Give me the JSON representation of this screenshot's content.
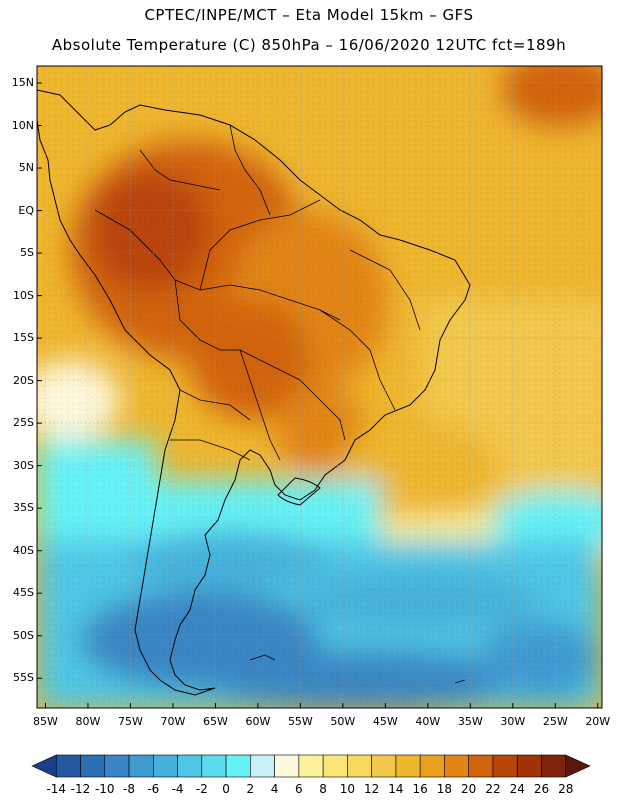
{
  "title": {
    "line1": "CPTEC/INPE/MCT –  Eta Model 15km – GFS",
    "line2": "Absolute Temperature (C) 850hPa – 16/06/2020 12UTC fct=189h"
  },
  "map": {
    "variable": "Absolute Temperature (C) 850hPa",
    "lat_ticks": [
      "15N",
      "10N",
      "5N",
      "EQ",
      "5S",
      "10S",
      "15S",
      "20S",
      "25S",
      "30S",
      "35S",
      "40S",
      "45S",
      "50S",
      "55S"
    ],
    "lon_ticks": [
      "85W",
      "80W",
      "75W",
      "70W",
      "65W",
      "60W",
      "55W",
      "50W",
      "45W",
      "40W",
      "35W",
      "30W",
      "25W",
      "20W"
    ]
  },
  "colorbar": {
    "labels": [
      "-14",
      "-12",
      "-10",
      "-8",
      "-6",
      "-4",
      "-2",
      "0",
      "2",
      "4",
      "6",
      "8",
      "10",
      "12",
      "14",
      "16",
      "18",
      "20",
      "22",
      "24",
      "26",
      "28"
    ],
    "colors": [
      "#1c3f8c",
      "#2458a0",
      "#2d6fb3",
      "#3a86c4",
      "#3f9bd0",
      "#46b2db",
      "#4fc7e6",
      "#5edcef",
      "#66f3f8",
      "#c8f0f7",
      "#fdf8dc",
      "#fdf39a",
      "#fbe777",
      "#f7d860",
      "#f3c94d",
      "#efb62e",
      "#eba11d",
      "#e28516",
      "#d2630d",
      "#ba4508",
      "#a03206",
      "#7c230a",
      "#5e1410"
    ]
  }
}
